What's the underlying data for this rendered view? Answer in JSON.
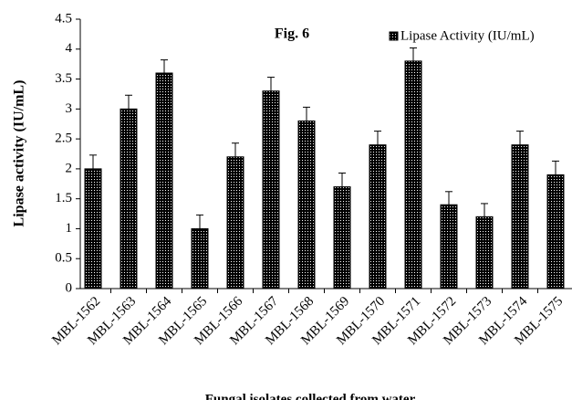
{
  "chart_data": {
    "type": "bar",
    "title": "Fig. 6",
    "y_label": "Lipase activity (IU/mL)",
    "x_label": "Fungal isolates collected from water",
    "categories": [
      "MBL-1562",
      "MBL-1563",
      "MBL-1564",
      "MBL-1565",
      "MBL-1566",
      "MBL-1567",
      "MBL-1568",
      "MBL-1569",
      "MBL-1570",
      "MBL-1571",
      "MBL-1572",
      "MBL-1573",
      "MBL-1574",
      "MBL-1575"
    ],
    "series": [
      {
        "name": "Lipase Activity (IU/mL)",
        "color": "#000000",
        "values": [
          2.0,
          3.0,
          3.6,
          1.0,
          2.2,
          3.3,
          2.8,
          1.7,
          2.4,
          3.8,
          1.4,
          1.2,
          2.4,
          1.9
        ],
        "errors": [
          0.23,
          0.23,
          0.22,
          0.23,
          0.23,
          0.23,
          0.23,
          0.23,
          0.23,
          0.22,
          0.22,
          0.22,
          0.23,
          0.23
        ]
      }
    ],
    "ylim": [
      0,
      4.5
    ],
    "yticks": [
      0,
      0.5,
      1,
      1.5,
      2,
      2.5,
      3,
      3.5,
      4,
      4.5
    ],
    "legend": "top-right"
  }
}
